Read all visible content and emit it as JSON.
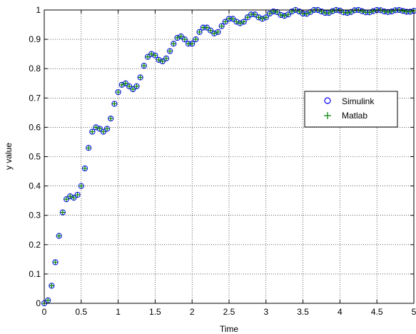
{
  "chart_data": {
    "type": "scatter",
    "xlabel": "Time",
    "ylabel": "y value",
    "xlim": [
      0,
      5
    ],
    "ylim": [
      0,
      1
    ],
    "grid": true,
    "legend_position": "right",
    "x_ticks": [
      "0",
      "0.5",
      "1",
      "1.5",
      "2",
      "2.5",
      "3",
      "3.5",
      "4",
      "4.5",
      "5"
    ],
    "y_ticks": [
      "0",
      "0.1",
      "0.2",
      "0.3",
      "0.4",
      "0.5",
      "0.6",
      "0.7",
      "0.8",
      "0.9",
      "1"
    ],
    "series": [
      {
        "name": "Simulink",
        "marker": "circle",
        "color": "#0000ff",
        "x": [
          0,
          0.05,
          0.1,
          0.15,
          0.2,
          0.25,
          0.3,
          0.35,
          0.4,
          0.45,
          0.5,
          0.55,
          0.6,
          0.65,
          0.7,
          0.75,
          0.8,
          0.85,
          0.9,
          0.95,
          1.0,
          1.05,
          1.1,
          1.15,
          1.2,
          1.25,
          1.3,
          1.35,
          1.4,
          1.45,
          1.5,
          1.55,
          1.6,
          1.65,
          1.7,
          1.75,
          1.8,
          1.85,
          1.9,
          1.95,
          2.0,
          2.05,
          2.1,
          2.15,
          2.2,
          2.25,
          2.3,
          2.35,
          2.4,
          2.45,
          2.5,
          2.55,
          2.6,
          2.65,
          2.7,
          2.75,
          2.8,
          2.85,
          2.9,
          2.95,
          3.0,
          3.05,
          3.1,
          3.15,
          3.2,
          3.25,
          3.3,
          3.35,
          3.4,
          3.45,
          3.5,
          3.55,
          3.6,
          3.65,
          3.7,
          3.75,
          3.8,
          3.85,
          3.9,
          3.95,
          4.0,
          4.05,
          4.1,
          4.15,
          4.2,
          4.25,
          4.3,
          4.35,
          4.4,
          4.45,
          4.5,
          4.55,
          4.6,
          4.65,
          4.7,
          4.75,
          4.8,
          4.85,
          4.9,
          4.95,
          5.0
        ],
        "y": [
          0,
          0.01,
          0.06,
          0.14,
          0.23,
          0.31,
          0.355,
          0.365,
          0.36,
          0.37,
          0.4,
          0.46,
          0.53,
          0.585,
          0.6,
          0.595,
          0.585,
          0.595,
          0.63,
          0.68,
          0.72,
          0.745,
          0.75,
          0.74,
          0.73,
          0.74,
          0.77,
          0.81,
          0.84,
          0.85,
          0.845,
          0.83,
          0.825,
          0.835,
          0.86,
          0.885,
          0.905,
          0.91,
          0.9,
          0.885,
          0.885,
          0.9,
          0.925,
          0.94,
          0.94,
          0.93,
          0.92,
          0.925,
          0.945,
          0.96,
          0.97,
          0.97,
          0.96,
          0.955,
          0.96,
          0.975,
          0.985,
          0.985,
          0.975,
          0.97,
          0.975,
          0.988,
          0.995,
          0.993,
          0.983,
          0.98,
          0.985,
          0.995,
          1.0,
          0.995,
          0.988,
          0.987,
          0.993,
          1.0,
          1.0,
          0.995,
          0.99,
          0.99,
          0.996,
          1.0,
          0.998,
          0.992,
          0.99,
          0.993,
          0.999,
          1.0,
          0.996,
          0.992,
          0.992,
          0.996,
          1.0,
          0.999,
          0.995,
          0.993,
          0.995,
          0.999,
          1.0,
          0.997,
          0.994,
          0.994,
          0.997
        ]
      },
      {
        "name": "Matlab",
        "marker": "plus",
        "color": "#008000",
        "x": [
          0,
          0.05,
          0.1,
          0.15,
          0.2,
          0.25,
          0.3,
          0.35,
          0.4,
          0.45,
          0.5,
          0.55,
          0.6,
          0.65,
          0.7,
          0.75,
          0.8,
          0.85,
          0.9,
          0.95,
          1.0,
          1.05,
          1.1,
          1.15,
          1.2,
          1.25,
          1.3,
          1.35,
          1.4,
          1.45,
          1.5,
          1.55,
          1.6,
          1.65,
          1.7,
          1.75,
          1.8,
          1.85,
          1.9,
          1.95,
          2.0,
          2.05,
          2.1,
          2.15,
          2.2,
          2.25,
          2.3,
          2.35,
          2.4,
          2.45,
          2.5,
          2.55,
          2.6,
          2.65,
          2.7,
          2.75,
          2.8,
          2.85,
          2.9,
          2.95,
          3.0,
          3.05,
          3.1,
          3.15,
          3.2,
          3.25,
          3.3,
          3.35,
          3.4,
          3.45,
          3.5,
          3.55,
          3.6,
          3.65,
          3.7,
          3.75,
          3.8,
          3.85,
          3.9,
          3.95,
          4.0,
          4.05,
          4.1,
          4.15,
          4.2,
          4.25,
          4.3,
          4.35,
          4.4,
          4.45,
          4.5,
          4.55,
          4.6,
          4.65,
          4.7,
          4.75,
          4.8,
          4.85,
          4.9,
          4.95,
          5.0
        ],
        "y": [
          0,
          0.01,
          0.06,
          0.14,
          0.23,
          0.31,
          0.355,
          0.365,
          0.36,
          0.37,
          0.4,
          0.46,
          0.53,
          0.585,
          0.6,
          0.595,
          0.585,
          0.595,
          0.63,
          0.68,
          0.72,
          0.745,
          0.75,
          0.74,
          0.73,
          0.74,
          0.77,
          0.81,
          0.84,
          0.85,
          0.845,
          0.83,
          0.825,
          0.835,
          0.86,
          0.885,
          0.905,
          0.91,
          0.9,
          0.885,
          0.885,
          0.9,
          0.925,
          0.94,
          0.94,
          0.93,
          0.92,
          0.925,
          0.945,
          0.96,
          0.97,
          0.97,
          0.96,
          0.955,
          0.96,
          0.975,
          0.985,
          0.985,
          0.975,
          0.97,
          0.975,
          0.988,
          0.995,
          0.993,
          0.983,
          0.98,
          0.985,
          0.995,
          1.0,
          0.995,
          0.988,
          0.987,
          0.993,
          1.0,
          1.0,
          0.995,
          0.99,
          0.99,
          0.996,
          1.0,
          0.998,
          0.992,
          0.99,
          0.993,
          0.999,
          1.0,
          0.996,
          0.992,
          0.992,
          0.996,
          1.0,
          0.999,
          0.995,
          0.993,
          0.995,
          0.999,
          1.0,
          0.997,
          0.994,
          0.994,
          0.997
        ]
      }
    ]
  }
}
